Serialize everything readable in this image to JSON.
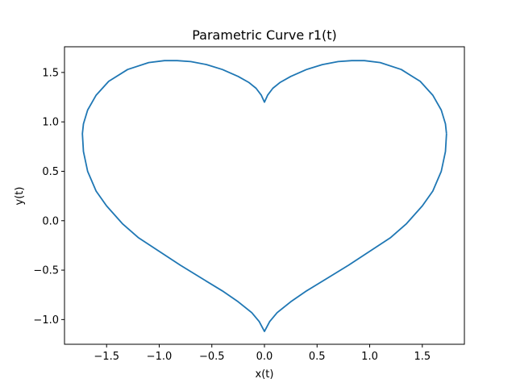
{
  "chart_data": {
    "type": "line",
    "title": "Parametric Curve r1(t)",
    "xlabel": "x(t)",
    "ylabel": "y(t)",
    "xlim": [
      -1.9,
      1.9
    ],
    "ylim": [
      -1.25,
      1.76
    ],
    "xticks": [
      -1.5,
      -1.0,
      -0.5,
      0.0,
      0.5,
      1.0,
      1.5
    ],
    "xtick_labels": [
      "−1.5",
      "−1.0",
      "−0.5",
      "0.0",
      "0.5",
      "1.0",
      "1.5"
    ],
    "yticks": [
      -1.0,
      -0.5,
      0.0,
      0.5,
      1.0,
      1.5
    ],
    "ytick_labels": [
      "−1.0",
      "−0.5",
      "0.0",
      "0.5",
      "1.0",
      "1.5"
    ],
    "grid": false,
    "series": [
      {
        "color": "#1f77b4",
        "points": [
          [
            1.73,
            0.88
          ],
          [
            1.72,
            0.98
          ],
          [
            1.68,
            1.12
          ],
          [
            1.6,
            1.27
          ],
          [
            1.48,
            1.41
          ],
          [
            1.3,
            1.53
          ],
          [
            1.1,
            1.6
          ],
          [
            0.95,
            1.62
          ],
          [
            0.83,
            1.62
          ],
          [
            0.7,
            1.61
          ],
          [
            0.55,
            1.58
          ],
          [
            0.4,
            1.53
          ],
          [
            0.25,
            1.46
          ],
          [
            0.15,
            1.4
          ],
          [
            0.08,
            1.34
          ],
          [
            0.03,
            1.27
          ],
          [
            0.0,
            1.2
          ],
          [
            -0.03,
            1.27
          ],
          [
            -0.08,
            1.34
          ],
          [
            -0.15,
            1.4
          ],
          [
            -0.25,
            1.46
          ],
          [
            -0.4,
            1.53
          ],
          [
            -0.55,
            1.58
          ],
          [
            -0.7,
            1.61
          ],
          [
            -0.83,
            1.62
          ],
          [
            -0.95,
            1.62
          ],
          [
            -1.1,
            1.6
          ],
          [
            -1.3,
            1.53
          ],
          [
            -1.48,
            1.41
          ],
          [
            -1.6,
            1.27
          ],
          [
            -1.68,
            1.12
          ],
          [
            -1.72,
            0.98
          ],
          [
            -1.73,
            0.88
          ],
          [
            -1.72,
            0.7
          ],
          [
            -1.68,
            0.5
          ],
          [
            -1.6,
            0.3
          ],
          [
            -1.5,
            0.15
          ],
          [
            -1.35,
            -0.03
          ],
          [
            -1.2,
            -0.17
          ],
          [
            -1.0,
            -0.31
          ],
          [
            -0.8,
            -0.45
          ],
          [
            -0.6,
            -0.58
          ],
          [
            -0.4,
            -0.71
          ],
          [
            -0.25,
            -0.82
          ],
          [
            -0.12,
            -0.93
          ],
          [
            -0.05,
            -1.02
          ],
          [
            0.0,
            -1.12
          ],
          [
            0.05,
            -1.02
          ],
          [
            0.12,
            -0.93
          ],
          [
            0.25,
            -0.82
          ],
          [
            0.4,
            -0.71
          ],
          [
            0.6,
            -0.58
          ],
          [
            0.8,
            -0.45
          ],
          [
            1.0,
            -0.31
          ],
          [
            1.2,
            -0.17
          ],
          [
            1.35,
            -0.03
          ],
          [
            1.5,
            0.15
          ],
          [
            1.6,
            0.3
          ],
          [
            1.68,
            0.5
          ],
          [
            1.72,
            0.7
          ],
          [
            1.73,
            0.88
          ]
        ]
      }
    ]
  }
}
